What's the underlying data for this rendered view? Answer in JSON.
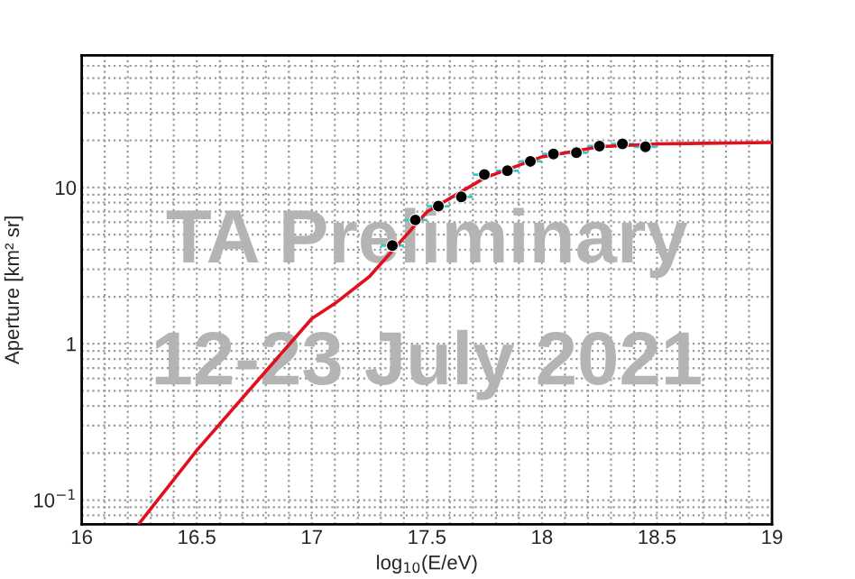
{
  "chart_data": {
    "type": "scatter",
    "xlabel": "log$_{10}$(E/eV)",
    "ylabel": "Aperture [km² sr]",
    "annotations": [
      "TA Preliminary",
      "12-23 July 2021"
    ],
    "log": "y",
    "grid": true,
    "xlim": [
      16,
      19
    ],
    "xticks": [
      16,
      16.5,
      17,
      17.5,
      18,
      18.5,
      19
    ],
    "ylim": [
      0.07,
      70
    ],
    "yticks": [
      {
        "value": 0.1,
        "label": "10$^{−1}$"
      },
      1,
      10
    ],
    "series": [
      {
        "type": "line",
        "color": "#e0101e",
        "x": [
          16.25,
          16.5,
          16.75,
          17,
          17.1,
          17.25,
          17.5,
          17.75,
          18,
          18.25,
          18.5,
          19
        ],
        "values": [
          0.071,
          0.208,
          0.55,
          1.45,
          1.81,
          2.69,
          6.97,
          11.5,
          15.7,
          18.2,
          19,
          19.4
        ]
      },
      {
        "marker": "circle",
        "color": "#000000",
        "x": [
          17.35,
          17.45,
          17.55,
          17.65,
          17.75,
          17.85,
          17.95,
          18.05,
          18.15,
          18.25,
          18.35,
          18.45
        ],
        "values": [
          4.25,
          6.2,
          7.6,
          8.7,
          12.1,
          12.8,
          14.7,
          16.4,
          16.7,
          18.4,
          19.0,
          18.2
        ],
        "xerrors": [
          0.05,
          0.05,
          0.05,
          0.05,
          0.05,
          0.05,
          0.05,
          0.05,
          0.05,
          0.05,
          0.05,
          0.05
        ]
      }
    ]
  }
}
